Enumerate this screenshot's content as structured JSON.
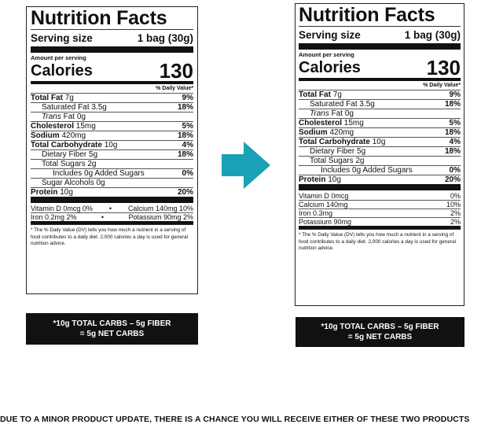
{
  "colors": {
    "arrow": "#1BA1B5",
    "ink": "#111111"
  },
  "left": {
    "title": "Nutrition Facts",
    "serving_label": "Serving size",
    "serving_value": "1 bag (30g)",
    "amount_per_serving": "Amount per serving",
    "calories_label": "Calories",
    "calories_value": "130",
    "dv_header": "% Daily Value*",
    "rows": {
      "total_fat": {
        "name": "Total Fat",
        "amt": "7g",
        "dv": "9%"
      },
      "sat_fat": {
        "name": "Saturated Fat 3.5g",
        "dv": "18%"
      },
      "trans_fat": {
        "italic": "Trans",
        "rest": "Fat 0g"
      },
      "cholesterol": {
        "name": "Cholesterol",
        "amt": "15mg",
        "dv": "5%"
      },
      "sodium": {
        "name": "Sodium",
        "amt": "420mg",
        "dv": "18%"
      },
      "carb": {
        "name": "Total Carbohydrate",
        "amt": "10g",
        "dv": "4%"
      },
      "fiber": {
        "name": "Dietary Fiber 5g",
        "dv": "18%"
      },
      "sugars": {
        "name": "Total Sugars 2g"
      },
      "added_sugars": {
        "name": "Includes 0g Added Sugars",
        "dv": "0%"
      },
      "sugar_alcohols": {
        "name": "Sugar Alcohols 0g"
      },
      "protein": {
        "name": "Protein",
        "amt": "10g",
        "dv": "20%"
      }
    },
    "vitamins": {
      "row1_left": "Vitamin D 0mcg 0%",
      "row1_right": "Calcium 140mg 10%",
      "row2_left": "Iron 0.2mg 2%",
      "row2_right": "Potassium 90mg 2%",
      "separator": "•"
    },
    "footnote": "* The % Daily Value (DV) tells you how much a nutrient in a serving of food contributes to a daily diet. 2,000 calories a day is used for general nutrition advice.",
    "net_carbs_line1": "*10g TOTAL CARBS – 5g FIBER",
    "net_carbs_line2": "= 5g NET CARBS"
  },
  "right": {
    "title": "Nutrition Facts",
    "serving_label": "Serving size",
    "serving_value": "1 bag (30g)",
    "amount_per_serving": "Amount per serving",
    "calories_label": "Calories",
    "calories_value": "130",
    "dv_header": "% Daily Value*",
    "rows": {
      "total_fat": {
        "name": "Total Fat",
        "amt": "7g",
        "dv": "9%"
      },
      "sat_fat": {
        "name": "Saturated Fat 3.5g",
        "dv": "18%"
      },
      "trans_fat": {
        "italic": "Trans",
        "rest": "Fat 0g"
      },
      "cholesterol": {
        "name": "Cholesterol",
        "amt": "15mg",
        "dv": "5%"
      },
      "sodium": {
        "name": "Sodium",
        "amt": "420mg",
        "dv": "18%"
      },
      "carb": {
        "name": "Total Carbohydrate",
        "amt": "10g",
        "dv": "4%"
      },
      "fiber": {
        "name": "Dietary Fiber 5g",
        "dv": "18%"
      },
      "sugars": {
        "name": "Total Sugars 2g"
      },
      "added_sugars": {
        "name": "Includes 0g Added Sugars",
        "dv": "0%"
      },
      "protein": {
        "name": "Protein",
        "amt": "10g",
        "dv": "20%"
      }
    },
    "vitamins": [
      {
        "name": "Vitamin D 0mcg",
        "dv": "0%"
      },
      {
        "name": "Calcium 140mg",
        "dv": "10%"
      },
      {
        "name": "Iron 0.3mg",
        "dv": "2%"
      },
      {
        "name": "Potassium 90mg",
        "dv": "2%"
      }
    ],
    "footnote": "* The % Daily Value (DV) tells you how much a nutrient in a serving of food contributes to a daily diet. 2,000 calories a day is used for general nutrition advice.",
    "net_carbs_line1": "*10g TOTAL CARBS – 5g FIBER",
    "net_carbs_line2": "= 5g NET CARBS"
  },
  "notice": "DUE TO A MINOR PRODUCT UPDATE, THERE IS A CHANCE YOU WILL RECEIVE EITHER OF THESE TWO PRODUCTS"
}
